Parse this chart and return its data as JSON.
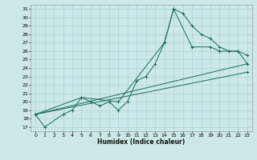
{
  "xlabel": "Humidex (Indice chaleur)",
  "bg_color": "#cce8e8",
  "line_color": "#1a6b5a",
  "grid_color": "#aad4d4",
  "xlim": [
    -0.5,
    23.5
  ],
  "ylim": [
    16.5,
    31.5
  ],
  "yticks": [
    17,
    18,
    19,
    20,
    21,
    22,
    23,
    24,
    25,
    26,
    27,
    28,
    29,
    30,
    31
  ],
  "xticks": [
    0,
    1,
    2,
    3,
    4,
    5,
    6,
    7,
    8,
    9,
    10,
    11,
    12,
    13,
    14,
    15,
    16,
    17,
    18,
    19,
    20,
    21,
    22,
    23
  ],
  "xtick_labels": [
    "0",
    "1",
    "2",
    "3",
    "4",
    "5",
    "6",
    "7",
    "8",
    "9",
    "10",
    "11",
    "12",
    "13",
    "14",
    "15",
    "16",
    "17",
    "18",
    "19",
    "20",
    "21",
    "22",
    "23"
  ],
  "series": [
    {
      "x": [
        0,
        1,
        3,
        4,
        5,
        6,
        7,
        8,
        9,
        10,
        11,
        12,
        13,
        14,
        15,
        16,
        17,
        18,
        19,
        20,
        21,
        22,
        23
      ],
      "y": [
        18.5,
        17,
        18.5,
        19,
        20.5,
        20,
        19.5,
        20,
        19,
        20,
        22.5,
        23,
        24.5,
        27,
        31,
        30.5,
        29,
        28,
        27.5,
        26.5,
        26,
        26,
        25.5
      ]
    },
    {
      "x": [
        0,
        5,
        9,
        14,
        15,
        17,
        19,
        20,
        22,
        23
      ],
      "y": [
        18.5,
        20.5,
        20,
        27,
        31,
        26.5,
        26.5,
        26,
        26,
        24.5
      ]
    },
    {
      "x": [
        0,
        23
      ],
      "y": [
        18.5,
        24.5
      ]
    },
    {
      "x": [
        0,
        23
      ],
      "y": [
        18.5,
        23.5
      ]
    }
  ]
}
